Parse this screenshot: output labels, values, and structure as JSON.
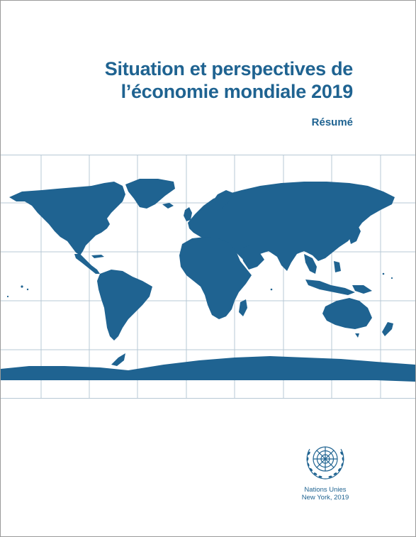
{
  "cover": {
    "title_line1": "Situation et perspectives de",
    "title_line2": "l’économie mondiale 2019",
    "subtitle": "Résumé"
  },
  "publisher": {
    "organization": "Nations Unies",
    "place_year": "New York, 2019"
  },
  "colors": {
    "brand_blue": "#1f6391",
    "grid": "#b7c8d5",
    "border": "#9a9a9a"
  },
  "icons": {
    "emblem": "un-emblem-icon",
    "map": "world-map"
  }
}
